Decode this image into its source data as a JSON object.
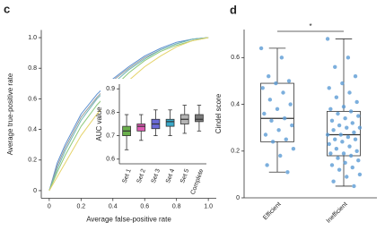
{
  "chart_data": [
    {
      "type": "line",
      "panel_label": "c",
      "x_label": "Average false-positive rate",
      "y_label": "Average true-positive rate",
      "x": [
        0,
        0.05,
        0.1,
        0.2,
        0.3,
        0.4,
        0.5,
        0.6,
        0.7,
        0.8,
        0.9,
        1
      ],
      "xlim": [
        -0.05,
        1.05
      ],
      "ylim": [
        -0.05,
        1.05
      ],
      "xticks": [
        0,
        0.2,
        0.4,
        0.6,
        0.8,
        {
          "value": 1,
          "label": "1.0"
        }
      ],
      "yticks": [
        0,
        0.2,
        0.4,
        0.6,
        0.8,
        {
          "value": 1,
          "label": "1.0"
        }
      ],
      "series": [
        {
          "color": "#5b8fd0",
          "values": [
            0,
            0.18,
            0.3,
            0.5,
            0.63,
            0.73,
            0.81,
            0.88,
            0.93,
            0.97,
            0.99,
            1
          ]
        },
        {
          "color": "#9a9a9a",
          "values": [
            0,
            0.16,
            0.28,
            0.48,
            0.61,
            0.72,
            0.8,
            0.87,
            0.92,
            0.96,
            0.99,
            1
          ]
        },
        {
          "color": "#6fb7b7",
          "values": [
            0,
            0.14,
            0.26,
            0.46,
            0.6,
            0.7,
            0.79,
            0.86,
            0.92,
            0.96,
            0.99,
            1
          ]
        },
        {
          "color": "#8fc97a",
          "values": [
            0,
            0.12,
            0.23,
            0.42,
            0.56,
            0.67,
            0.77,
            0.85,
            0.91,
            0.95,
            0.98,
            1
          ]
        },
        {
          "color": "#e5d36a",
          "values": [
            0,
            0.09,
            0.18,
            0.36,
            0.5,
            0.62,
            0.72,
            0.81,
            0.88,
            0.94,
            0.98,
            1
          ]
        }
      ],
      "inset": {
        "type": "box",
        "y_label": "AUC value",
        "categories": [
          "Set 1",
          "Set 2",
          "Set 3",
          "Set 4",
          "Set 5",
          "Complete"
        ],
        "ylim": [
          0.58,
          0.92
        ],
        "yticks": [
          0.6,
          0.7,
          0.8,
          0.9
        ],
        "boxes": [
          {
            "color": "#6ab04c",
            "min": 0.64,
            "q1": 0.7,
            "median": 0.72,
            "q3": 0.74,
            "max": 0.79
          },
          {
            "color": "#e05bb5",
            "min": 0.68,
            "q1": 0.72,
            "median": 0.74,
            "q3": 0.75,
            "max": 0.79
          },
          {
            "color": "#6a6ad6",
            "min": 0.7,
            "q1": 0.73,
            "median": 0.75,
            "q3": 0.77,
            "max": 0.81
          },
          {
            "color": "#3aa9c9",
            "min": 0.7,
            "q1": 0.74,
            "median": 0.76,
            "q3": 0.77,
            "max": 0.81
          },
          {
            "color": "#b5b5b5",
            "min": 0.71,
            "q1": 0.75,
            "median": 0.77,
            "q3": 0.79,
            "max": 0.83
          },
          {
            "color": "#7a7a7a",
            "min": 0.72,
            "q1": 0.76,
            "median": 0.77,
            "q3": 0.79,
            "max": 0.83
          }
        ]
      }
    },
    {
      "type": "box",
      "panel_label": "d",
      "y_label": "Cindel score",
      "categories": [
        "Efficient",
        "Inefficient"
      ],
      "ylim": [
        0,
        0.72
      ],
      "yticks": [
        0,
        0.2,
        0.4,
        0.6
      ],
      "annotation": "*",
      "point_color": "#5b9bd5",
      "boxes": [
        {
          "color": "#ffffff",
          "min": 0.11,
          "q1": 0.24,
          "median": 0.34,
          "q3": 0.49,
          "max": 0.64
        },
        {
          "color": "#ffffff",
          "min": 0.05,
          "q1": 0.18,
          "median": 0.27,
          "q3": 0.37,
          "max": 0.68
        }
      ],
      "points": [
        [
          0.64,
          0.6,
          0.52,
          0.5,
          0.49,
          0.47,
          0.45,
          0.42,
          0.4,
          0.38,
          0.36,
          0.34,
          0.33,
          0.31,
          0.29,
          0.27,
          0.25,
          0.24,
          0.21,
          0.18,
          0.14,
          0.11
        ],
        [
          0.68,
          0.6,
          0.56,
          0.52,
          0.49,
          0.47,
          0.45,
          0.43,
          0.41,
          0.39,
          0.38,
          0.37,
          0.36,
          0.35,
          0.34,
          0.33,
          0.32,
          0.31,
          0.3,
          0.3,
          0.29,
          0.28,
          0.27,
          0.27,
          0.26,
          0.25,
          0.25,
          0.24,
          0.23,
          0.22,
          0.21,
          0.2,
          0.19,
          0.19,
          0.18,
          0.17,
          0.16,
          0.15,
          0.14,
          0.13,
          0.12,
          0.1,
          0.09,
          0.07,
          0.05
        ]
      ]
    }
  ]
}
